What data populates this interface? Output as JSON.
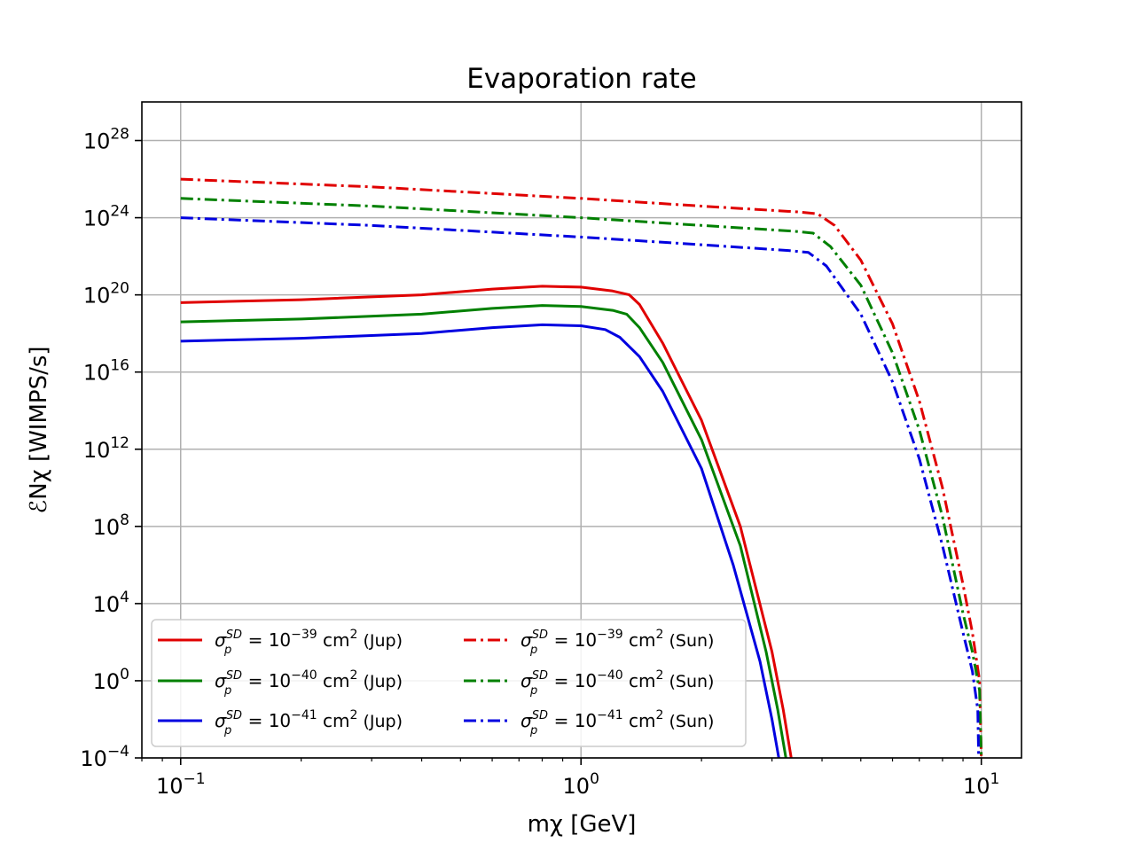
{
  "chart_data": {
    "type": "line",
    "title": "Evaporation rate",
    "xlabel": "mχ [GeV]",
    "ylabel": "ℰNχ [WIMPS/s]",
    "xscale": "log",
    "yscale": "log",
    "xlim": [
      0.08,
      12.6
    ],
    "ylim": [
      0.0001,
      1e+30
    ],
    "grid": true,
    "legend_position": "lower-left",
    "x_ticks": [
      {
        "value": 0.1,
        "base": "10",
        "exp": "−1"
      },
      {
        "value": 1,
        "base": "10",
        "exp": "0"
      },
      {
        "value": 10,
        "base": "10",
        "exp": "1"
      }
    ],
    "y_ticks": [
      {
        "value": 0.0001,
        "base": "10",
        "exp": "−4"
      },
      {
        "value": 1,
        "base": "10",
        "exp": "0"
      },
      {
        "value": 10000.0,
        "base": "10",
        "exp": "4"
      },
      {
        "value": 100000000.0,
        "base": "10",
        "exp": "8"
      },
      {
        "value": 1000000000000.0,
        "base": "10",
        "exp": "12"
      },
      {
        "value": 1e+16,
        "base": "10",
        "exp": "16"
      },
      {
        "value": 1e+20,
        "base": "10",
        "exp": "20"
      },
      {
        "value": 1e+24,
        "base": "10",
        "exp": "24"
      },
      {
        "value": 1e+28,
        "base": "10",
        "exp": "28"
      }
    ],
    "series": [
      {
        "name": "σp SD = 10^−39 cm² (Jup)",
        "color": "#e00000",
        "dash": "solid",
        "x": [
          0.1,
          0.2,
          0.4,
          0.6,
          0.8,
          1.0,
          1.2,
          1.32,
          1.4,
          1.6,
          2.0,
          2.5,
          3.0,
          3.2,
          3.35
        ],
        "y_log10": [
          19.6,
          19.75,
          20.0,
          20.3,
          20.45,
          20.4,
          20.2,
          20.0,
          19.5,
          17.5,
          13.5,
          8.0,
          1.5,
          -1.5,
          -4.0
        ]
      },
      {
        "name": "σp SD = 10^−40 cm² (Jup)",
        "color": "#008000",
        "dash": "solid",
        "x": [
          0.1,
          0.2,
          0.4,
          0.6,
          0.8,
          1.0,
          1.2,
          1.3,
          1.4,
          1.6,
          2.0,
          2.5,
          2.9,
          3.1,
          3.25
        ],
        "y_log10": [
          18.6,
          18.75,
          19.0,
          19.3,
          19.45,
          19.4,
          19.2,
          19.0,
          18.3,
          16.5,
          12.5,
          7.0,
          1.5,
          -1.5,
          -4.0
        ]
      },
      {
        "name": "σp SD = 10^−41 cm² (Jup)",
        "color": "#0000e0",
        "dash": "solid",
        "x": [
          0.1,
          0.2,
          0.4,
          0.6,
          0.8,
          1.0,
          1.15,
          1.25,
          1.4,
          1.6,
          2.0,
          2.4,
          2.8,
          3.0,
          3.12
        ],
        "y_log10": [
          17.6,
          17.75,
          18.0,
          18.3,
          18.45,
          18.4,
          18.2,
          17.8,
          16.8,
          15.0,
          11.0,
          6.0,
          1.0,
          -2.0,
          -4.0
        ]
      },
      {
        "name": "σp SD = 10^−39 cm² (Sun)",
        "color": "#e00000",
        "dash": "dashdot",
        "x": [
          0.1,
          0.3,
          1.0,
          2.0,
          3.5,
          3.9,
          4.3,
          5.0,
          6.0,
          7.0,
          8.0,
          9.0,
          9.5,
          9.9,
          10.0
        ],
        "y_log10": [
          26.0,
          25.6,
          25.0,
          24.6,
          24.3,
          24.2,
          23.6,
          21.8,
          18.5,
          14.5,
          10.0,
          5.0,
          2.5,
          0.0,
          -4.0
        ]
      },
      {
        "name": "σp SD = 10^−40 cm² (Sun)",
        "color": "#008000",
        "dash": "dashdot",
        "x": [
          0.1,
          0.3,
          1.0,
          2.0,
          3.4,
          3.8,
          4.2,
          5.0,
          6.0,
          7.0,
          8.0,
          9.0,
          9.5,
          9.9,
          10.0
        ],
        "y_log10": [
          25.0,
          24.6,
          24.0,
          23.6,
          23.3,
          23.2,
          22.5,
          20.5,
          17.0,
          13.0,
          8.5,
          3.5,
          1.5,
          -0.5,
          -4.0
        ]
      },
      {
        "name": "σp SD = 10^−41 cm² (Sun)",
        "color": "#0000e0",
        "dash": "dashdot",
        "x": [
          0.1,
          0.3,
          1.0,
          2.0,
          3.3,
          3.7,
          4.1,
          5.0,
          6.0,
          7.0,
          8.0,
          9.0,
          9.5,
          9.8,
          9.85
        ],
        "y_log10": [
          24.0,
          23.6,
          23.0,
          22.6,
          22.3,
          22.2,
          21.5,
          19.0,
          15.5,
          11.5,
          7.0,
          2.5,
          0.5,
          -1.5,
          -4.0
        ]
      }
    ],
    "legend": [
      {
        "sym": "σ",
        "sub": "p",
        "sup": "SD",
        "eq": " = 10",
        "exp": "−39",
        "unit": " cm",
        "unit_exp": "2",
        "tag": " (Jup)",
        "color": "#e00000",
        "dash": "solid"
      },
      {
        "sym": "σ",
        "sub": "p",
        "sup": "SD",
        "eq": " = 10",
        "exp": "−40",
        "unit": " cm",
        "unit_exp": "2",
        "tag": " (Jup)",
        "color": "#008000",
        "dash": "solid"
      },
      {
        "sym": "σ",
        "sub": "p",
        "sup": "SD",
        "eq": " = 10",
        "exp": "−41",
        "unit": " cm",
        "unit_exp": "2",
        "tag": " (Jup)",
        "color": "#0000e0",
        "dash": "solid"
      },
      {
        "sym": "σ",
        "sub": "p",
        "sup": "SD",
        "eq": " = 10",
        "exp": "−39",
        "unit": " cm",
        "unit_exp": "2",
        "tag": " (Sun)",
        "color": "#e00000",
        "dash": "dashdot"
      },
      {
        "sym": "σ",
        "sub": "p",
        "sup": "SD",
        "eq": " = 10",
        "exp": "−40",
        "unit": " cm",
        "unit_exp": "2",
        "tag": " (Sun)",
        "color": "#008000",
        "dash": "dashdot"
      },
      {
        "sym": "σ",
        "sub": "p",
        "sup": "SD",
        "eq": " = 10",
        "exp": "−41",
        "unit": " cm",
        "unit_exp": "2",
        "tag": " (Sun)",
        "color": "#0000e0",
        "dash": "dashdot"
      }
    ]
  }
}
